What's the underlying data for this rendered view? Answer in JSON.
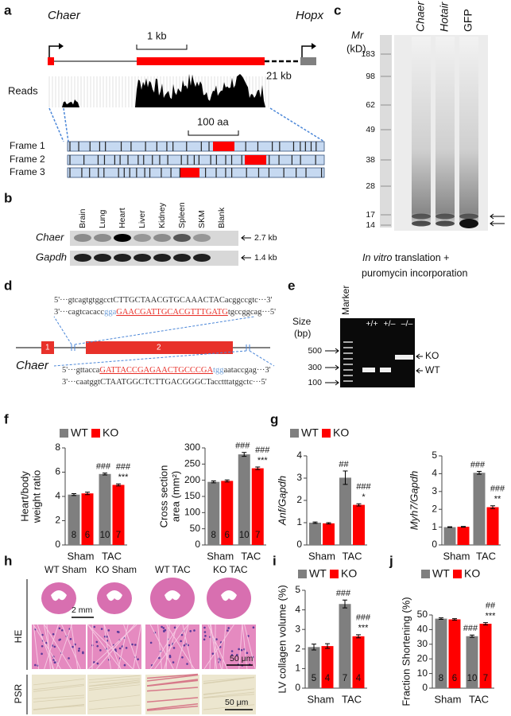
{
  "panel_labels": [
    "a",
    "b",
    "c",
    "d",
    "e",
    "f",
    "g",
    "h",
    "i",
    "j"
  ],
  "panel_a": {
    "gene": "Chaer",
    "scale": "1 kb",
    "neighbor": "Hopx",
    "distance": "21 kb",
    "reads": "Reads",
    "aa_scale": "100 aa",
    "frames": [
      "Frame 1",
      "Frame 2",
      "Frame 3"
    ]
  },
  "panel_b": {
    "tissues": [
      "Brain",
      "Lung",
      "Heart",
      "Liver",
      "Kidney",
      "Spleen",
      "SKM",
      "Blank"
    ],
    "probes": [
      "Chaer",
      "Gapdh"
    ],
    "sizes": [
      "2.7 kb",
      "1.4 kb"
    ]
  },
  "panel_c": {
    "mr": "Mr",
    "unit": "(kD)",
    "markers": [
      183,
      98,
      62,
      49,
      38,
      28,
      17,
      14
    ],
    "lanes": [
      "Chaer",
      "Hotair",
      "GFP"
    ],
    "caption_italic": "In vitro",
    "caption_rest": "translation +",
    "caption_line2": "puromycin incorporation"
  },
  "panel_d": {
    "sequences": [
      [
        {
          "text": "5'···gtcagtgtggcctCTTGCTAACGTGCAAACTACacggccgtc···3'",
          "color": "#333333"
        }
      ],
      [
        {
          "text": "3'···cagtcacacc",
          "color": "#333333"
        },
        {
          "text": "gga",
          "color": "#6f9fd8"
        },
        {
          "text": "GAACGATTGCACGTTTGATG",
          "color": "#e8312a",
          "underline": true
        },
        {
          "text": "tgccggcag···5'",
          "color": "#333333"
        }
      ],
      [
        {
          "text": "5'···gttacca",
          "color": "#333333"
        },
        {
          "text": "GATTACCGAGAACTGCCCGA",
          "color": "#e8312a",
          "underline": true
        },
        {
          "text": "tgg",
          "color": "#6f9fd8"
        },
        {
          "text": "aataccgag···3'",
          "color": "#333333"
        }
      ],
      [
        {
          "text": "3'···caatggtCTAATGGCTCTTGACGGGCTacctttatggctc···5'",
          "color": "#333333"
        }
      ]
    ],
    "exons": [
      "1",
      "2"
    ],
    "gene": "Chaer"
  },
  "panel_e": {
    "size": "Size",
    "unit": "(bp)",
    "marker": "Marker",
    "sizes": [
      500,
      300,
      100
    ],
    "genotypes": [
      "+/+",
      "+/–",
      "–/–"
    ],
    "bands": [
      "KO",
      "WT"
    ]
  },
  "panel_h": {
    "groups": [
      "WT Sham",
      "KO Sham",
      "WT TAC",
      "KO TAC"
    ],
    "stains": [
      "HE",
      "PSR"
    ],
    "scale_bars": [
      "2 mm",
      "50 μm",
      "50 μm"
    ]
  },
  "chart_data": [
    {
      "type": "bar",
      "ylabel": [
        "Heart/body",
        "weight ratio"
      ],
      "categories": [
        "Sham",
        "TAC"
      ],
      "ylim": [
        0,
        8
      ],
      "yticks": [
        0,
        2,
        4,
        6,
        8
      ],
      "series": [
        {
          "name": "WT",
          "color": "#7f7f7f",
          "values": [
            4.15,
            5.85
          ],
          "errors": [
            0.08,
            0.08
          ],
          "n": [
            8,
            10
          ],
          "significance": [
            [],
            [
              "###"
            ]
          ]
        },
        {
          "name": "KO",
          "color": "#ff0000",
          "values": [
            4.25,
            4.95
          ],
          "errors": [
            0.1,
            0.08
          ],
          "n": [
            6,
            7
          ],
          "significance": [
            [],
            [
              "###",
              "***"
            ]
          ]
        }
      ]
    },
    {
      "type": "bar",
      "ylabel": [
        "Cross section",
        "area (mm²)"
      ],
      "categories": [
        "Sham",
        "TAC"
      ],
      "ylim": [
        0,
        300
      ],
      "yticks": [
        0,
        50,
        100,
        150,
        200,
        250,
        300
      ],
      "series": [
        {
          "color": "#7f7f7f",
          "values": [
            195,
            280
          ],
          "errors": [
            3,
            6
          ],
          "n": [
            8,
            10
          ],
          "significance": [
            [],
            [
              "###"
            ]
          ]
        },
        {
          "color": "#ff0000",
          "values": [
            198,
            237
          ],
          "errors": [
            3,
            4
          ],
          "n": [
            6,
            7
          ],
          "significance": [
            [],
            [
              "###",
              "***"
            ]
          ]
        }
      ]
    },
    {
      "type": "bar",
      "ylabel": [
        "Anf/Gapdh"
      ],
      "categories": [
        "Sham",
        "TAC"
      ],
      "ylim": [
        0,
        4
      ],
      "yticks": [
        0,
        1,
        2,
        3,
        4
      ],
      "series": [
        {
          "name": "WT",
          "color": "#7f7f7f",
          "values": [
            1.0,
            3.02
          ],
          "errors": [
            0.03,
            0.3
          ],
          "significance": [
            [],
            [
              "##"
            ]
          ]
        },
        {
          "name": "KO",
          "color": "#ff0000",
          "values": [
            0.97,
            1.8
          ],
          "errors": [
            0.03,
            0.05
          ],
          "significance": [
            [],
            [
              "###",
              "*"
            ]
          ]
        }
      ]
    },
    {
      "type": "bar",
      "ylabel": [
        "Myh7/Gapdh"
      ],
      "categories": [
        "Sham",
        "TAC"
      ],
      "ylim": [
        0,
        5
      ],
      "yticks": [
        0,
        1,
        2,
        3,
        4,
        5
      ],
      "series": [
        {
          "color": "#7f7f7f",
          "values": [
            1.0,
            4.05
          ],
          "errors": [
            0.02,
            0.08
          ],
          "significance": [
            [],
            [
              "###"
            ]
          ]
        },
        {
          "color": "#ff0000",
          "values": [
            1.02,
            2.12
          ],
          "errors": [
            0.02,
            0.08
          ],
          "significance": [
            [],
            [
              "###",
              "**"
            ]
          ]
        }
      ]
    },
    {
      "type": "bar",
      "ylabel": [
        "LV collagen volume (%)"
      ],
      "categories": [
        "Sham",
        "TAC"
      ],
      "ylim": [
        0,
        5
      ],
      "yticks": [
        0,
        1,
        2,
        3,
        4,
        5
      ],
      "series": [
        {
          "name": "WT",
          "color": "#7f7f7f",
          "values": [
            2.1,
            4.3
          ],
          "errors": [
            0.15,
            0.2
          ],
          "n": [
            5,
            7
          ],
          "significance": [
            [],
            [
              "###"
            ]
          ]
        },
        {
          "name": "KO",
          "color": "#ff0000",
          "values": [
            2.15,
            2.65
          ],
          "errors": [
            0.12,
            0.08
          ],
          "n": [
            4,
            4
          ],
          "significance": [
            [],
            [
              "###",
              "***"
            ]
          ]
        }
      ]
    },
    {
      "type": "bar",
      "ylabel": [
        "Fraction Shortening (%)"
      ],
      "categories": [
        "Sham",
        "TAC"
      ],
      "ylim": [
        0,
        50
      ],
      "yticks": [
        0,
        10,
        20,
        30,
        40,
        50
      ],
      "series": [
        {
          "name": "WT",
          "color": "#7f7f7f",
          "values": [
            47.5,
            35.5
          ],
          "errors": [
            0.5,
            0.8
          ],
          "n": [
            8,
            10
          ],
          "significance": [
            [],
            [
              "###"
            ]
          ]
        },
        {
          "name": "KO",
          "color": "#ff0000",
          "values": [
            47,
            44
          ],
          "errors": [
            0.5,
            0.8
          ],
          "n": [
            6,
            7
          ],
          "significance": [
            [],
            [
              "##",
              "***"
            ]
          ]
        }
      ]
    }
  ]
}
